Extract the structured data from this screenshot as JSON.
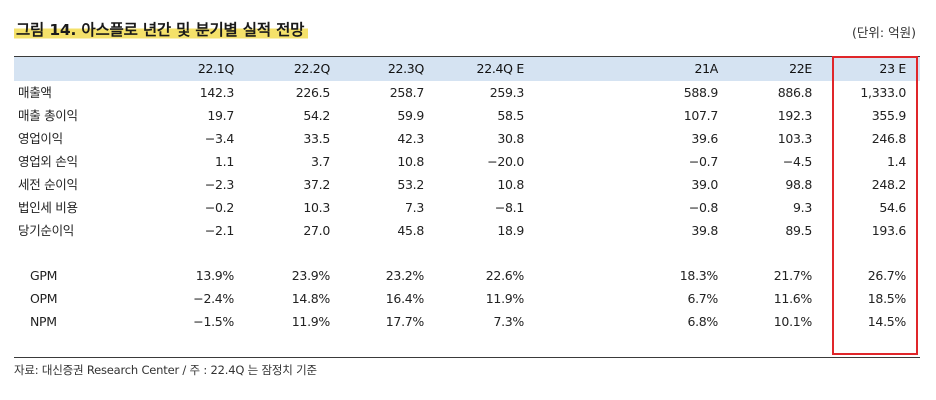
{
  "figure": {
    "title_prefix": "그림 14.",
    "title_text": "아스플로 년간 및 분기별 실적 전망",
    "unit": "(단위: 억원)"
  },
  "table": {
    "columns": [
      "22.1Q",
      "22.2Q",
      "22.3Q",
      "22.4Q E",
      "21A",
      "22E",
      "23 E"
    ],
    "rows": [
      {
        "label": "매출액",
        "values": [
          "142.3",
          "226.5",
          "258.7",
          "259.3",
          "588.9",
          "886.8",
          "1,333.0"
        ]
      },
      {
        "label": "매출 총이익",
        "values": [
          "19.7",
          "54.2",
          "59.9",
          "58.5",
          "107.7",
          "192.3",
          "355.9"
        ]
      },
      {
        "label": "영업이익",
        "values": [
          "−3.4",
          "33.5",
          "42.3",
          "30.8",
          "39.6",
          "103.3",
          "246.8"
        ]
      },
      {
        "label": "영업외 손익",
        "values": [
          "1.1",
          "3.7",
          "10.8",
          "−20.0",
          "−0.7",
          "−4.5",
          "1.4"
        ]
      },
      {
        "label": "세전 순이익",
        "values": [
          "−2.3",
          "37.2",
          "53.2",
          "10.8",
          "39.0",
          "98.8",
          "248.2"
        ]
      },
      {
        "label": "법인세 비용",
        "values": [
          "−0.2",
          "10.3",
          "7.3",
          "−8.1",
          "−0.8",
          "9.3",
          "54.6"
        ]
      },
      {
        "label": "당기순이익",
        "values": [
          "−2.1",
          "27.0",
          "45.8",
          "18.9",
          "39.8",
          "89.5",
          "193.6"
        ]
      }
    ],
    "ratio_rows": [
      {
        "label": "GPM",
        "values": [
          "13.9%",
          "23.9%",
          "23.2%",
          "22.6%",
          "18.3%",
          "21.7%",
          "26.7%"
        ]
      },
      {
        "label": "OPM",
        "values": [
          "−2.4%",
          "14.8%",
          "16.4%",
          "11.9%",
          "6.7%",
          "11.6%",
          "18.5%"
        ]
      },
      {
        "label": "NPM",
        "values": [
          "−1.5%",
          "11.9%",
          "17.7%",
          "7.3%",
          "6.8%",
          "10.1%",
          "14.5%"
        ]
      }
    ]
  },
  "source": "자료: 대신증권 Research Center / 주 : 22.4Q 는 잠정치 기준",
  "colors": {
    "header_bg": "#d5e3f2",
    "title_highlight": "#f4e16a",
    "highlight_box": "#e0262a"
  }
}
